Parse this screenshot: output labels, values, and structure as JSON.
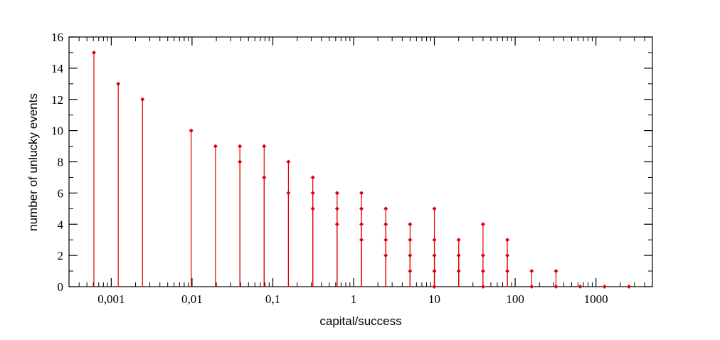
{
  "chart_data": {
    "type": "stem",
    "xlabel": "capital/success",
    "ylabel": "number of unlucky events",
    "xscale": "log",
    "color": "#e00000",
    "xlim": [
      0.0003,
      5000
    ],
    "ylim": [
      0,
      16
    ],
    "xticks": [
      {
        "value": 0.001,
        "label": "0,001"
      },
      {
        "value": 0.01,
        "label": "0,01"
      },
      {
        "value": 0.1,
        "label": "0,1"
      },
      1,
      10,
      100,
      1000
    ],
    "yticks": [
      0,
      2,
      4,
      6,
      8,
      10,
      12,
      14,
      16
    ],
    "x": [
      0.00061,
      0.00122,
      0.00244,
      0.00977,
      0.0195,
      0.0391,
      0.0391,
      0.0781,
      0.0781,
      0.156,
      0.156,
      0.3125,
      0.3125,
      0.3125,
      0.625,
      0.625,
      0.625,
      1.25,
      1.25,
      1.25,
      1.25,
      2.5,
      2.5,
      2.5,
      2.5,
      5,
      5,
      5,
      5,
      10,
      10,
      10,
      10,
      10,
      20,
      20,
      20,
      40,
      40,
      40,
      40,
      80,
      80,
      80,
      160,
      160,
      320,
      320,
      640,
      1280,
      2560
    ],
    "y": [
      15,
      13,
      12,
      10,
      9,
      9,
      8,
      9,
      7,
      8,
      6,
      7,
      6,
      5,
      6,
      5,
      4,
      6,
      5,
      4,
      3,
      5,
      4,
      3,
      2,
      4,
      3,
      2,
      1,
      5,
      3,
      2,
      1,
      0,
      3,
      2,
      1,
      4,
      2,
      1,
      0,
      3,
      2,
      1,
      1,
      0,
      1,
      0,
      0,
      0,
      0
    ]
  }
}
